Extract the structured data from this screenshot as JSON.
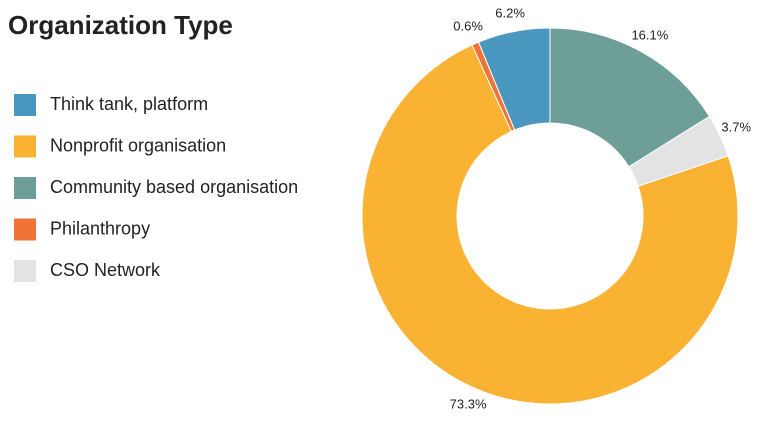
{
  "chart_data": {
    "type": "donut",
    "title": "Organization Type",
    "categories": [
      "Think tank, platform",
      "Nonprofit organisation",
      "Community based organisation",
      "Philanthropy",
      "CSO Network"
    ],
    "values": [
      6.2,
      73.3,
      16.1,
      0.6,
      3.7
    ],
    "value_labels": [
      "6.2%",
      "73.3%",
      "16.1%",
      "0.6%",
      "3.7%"
    ],
    "colors": [
      "#4a97c0",
      "#fab232",
      "#6e9e98",
      "#f07337",
      "#e3e3e3"
    ]
  }
}
